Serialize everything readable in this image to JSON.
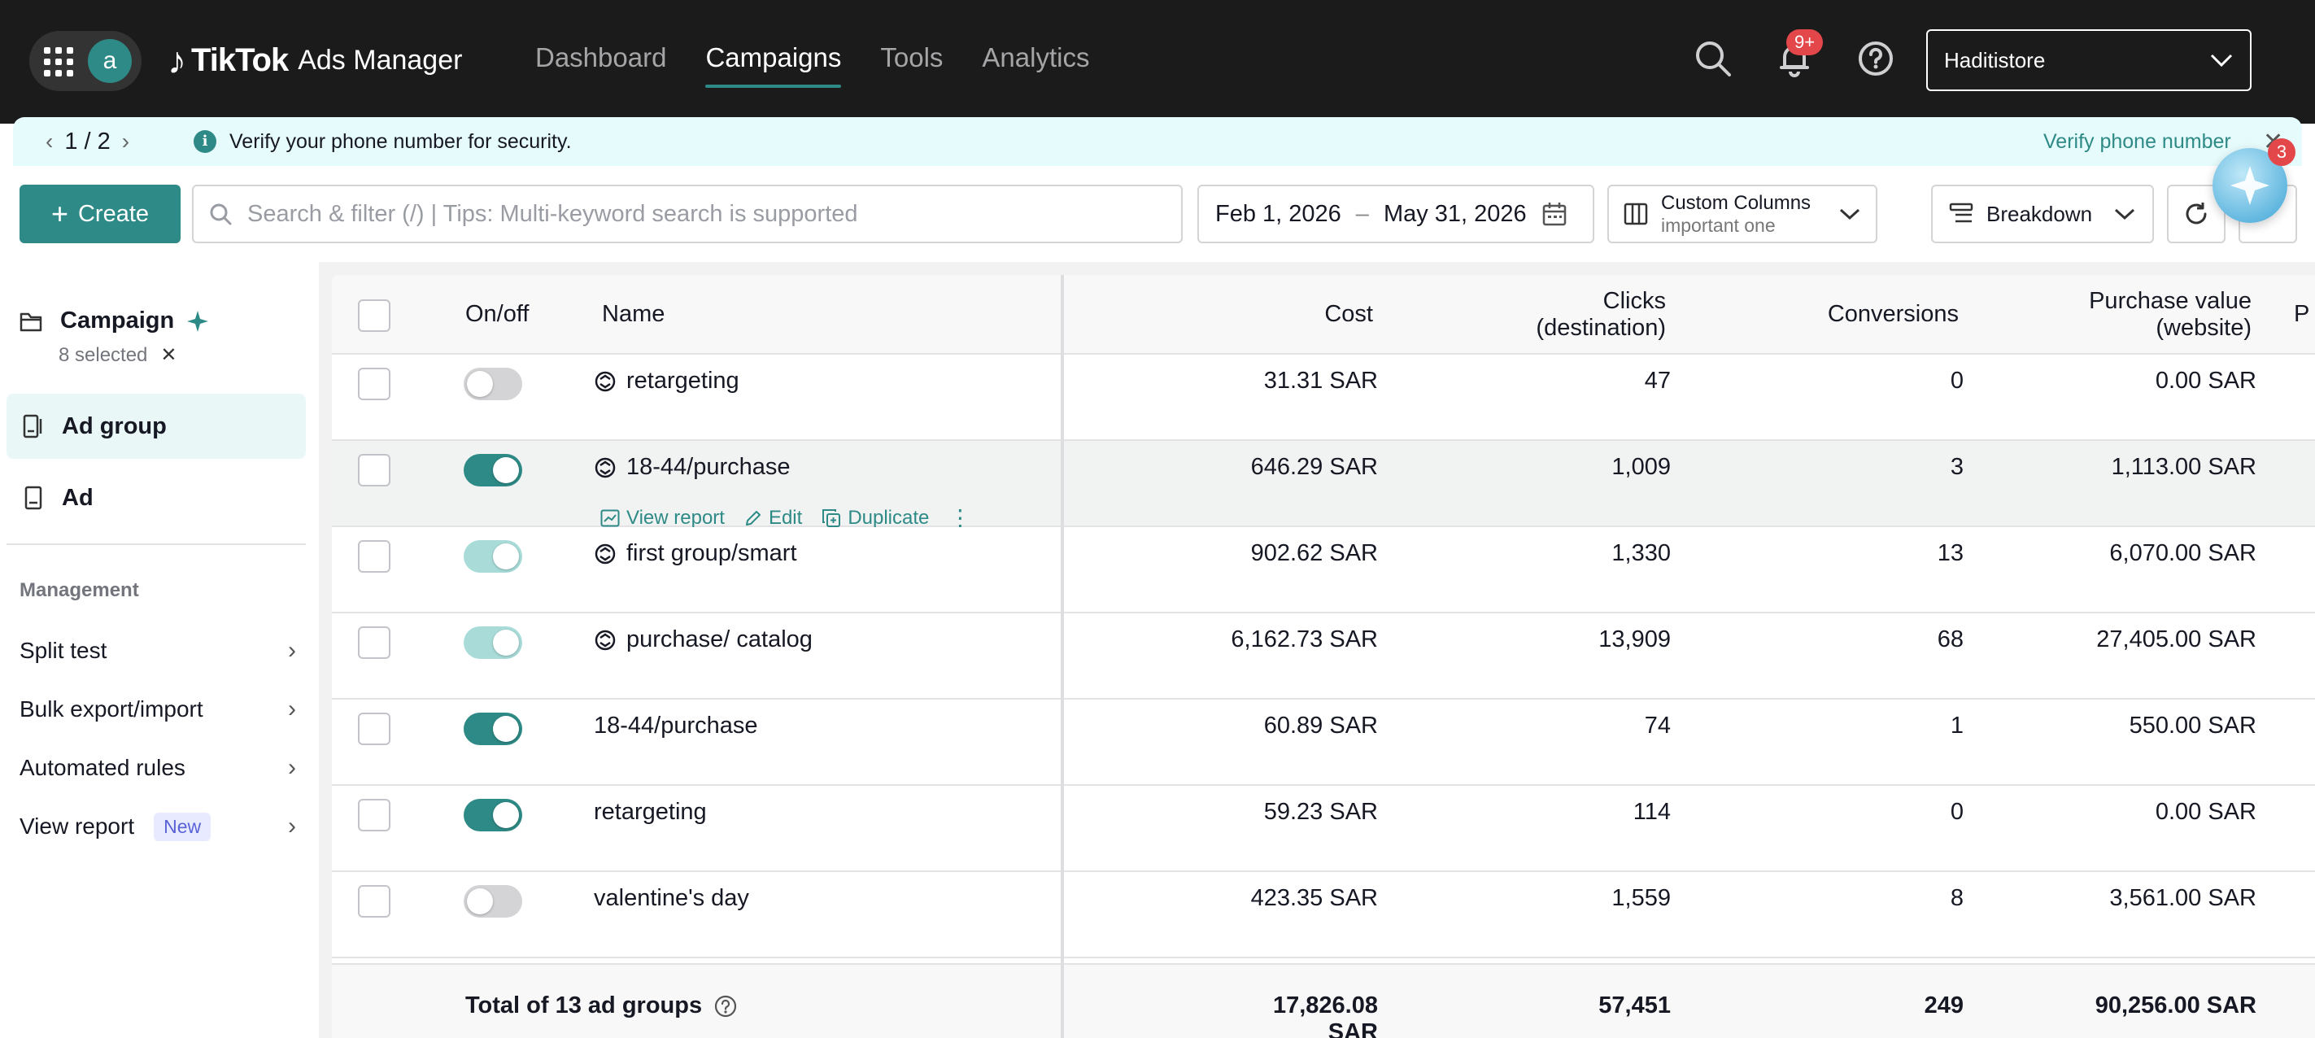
{
  "colors": {
    "accent": "#2e8a86",
    "topbar": "#1b1b1b",
    "notice_bg": "#e6fbfb",
    "badge_red": "#e4474a"
  },
  "header": {
    "avatar_letter": "a",
    "brand": "TikTok",
    "product": "Ads Manager",
    "nav": [
      "Dashboard",
      "Campaigns",
      "Tools",
      "Analytics"
    ],
    "notif_badge": "9+",
    "account": "Haditistore"
  },
  "notice": {
    "pager": "1 / 2",
    "message": "Verify your phone number for security.",
    "action": "Verify phone number"
  },
  "toolbar": {
    "create_label": "Create",
    "search_placeholder": "Search & filter (/) | Tips: Multi-keyword search is supported",
    "date_start": "Feb 1, 2026",
    "date_sep": "–",
    "date_end": "May 31, 2026",
    "columns_title": "Custom Columns",
    "columns_sub": "important one",
    "breakdown_label": "Breakdown",
    "assistant_badge": "3"
  },
  "sidebar": {
    "campaign_label": "Campaign",
    "selected_text": "8 selected",
    "adgroup_label": "Ad group",
    "ad_label": "Ad",
    "management_label": "Management",
    "items": [
      "Split test",
      "Bulk export/import",
      "Automated rules",
      "View report"
    ],
    "new_badge": "New"
  },
  "table": {
    "headers": {
      "onoff": "On/off",
      "name": "Name",
      "cost": "Cost",
      "clicks_1": "Clicks",
      "clicks_2": "(destination)",
      "conversions": "Conversions",
      "purchase_1": "Purchase value",
      "purchase_2": "(website)",
      "cut": "P"
    },
    "row_actions": {
      "view_report": "View report",
      "edit": "Edit",
      "duplicate": "Duplicate"
    },
    "rows": [
      {
        "name": "retargeting",
        "cost": "31.31 SAR",
        "clicks": "47",
        "conversions": "0",
        "purchase": "0.00 SAR"
      },
      {
        "name": "18-44/purchase",
        "cost": "646.29 SAR",
        "clicks": "1,009",
        "conversions": "3",
        "purchase": "1,113.00 SAR"
      },
      {
        "name": "first group/smart",
        "cost": "902.62 SAR",
        "clicks": "1,330",
        "conversions": "13",
        "purchase": "6,070.00 SAR"
      },
      {
        "name": "purchase/ catalog",
        "cost": "6,162.73 SAR",
        "clicks": "13,909",
        "conversions": "68",
        "purchase": "27,405.00 SAR"
      },
      {
        "name": "18-44/purchase",
        "cost": "60.89 SAR",
        "clicks": "74",
        "conversions": "1",
        "purchase": "550.00 SAR"
      },
      {
        "name": "retargeting",
        "cost": "59.23 SAR",
        "clicks": "114",
        "conversions": "0",
        "purchase": "0.00 SAR"
      },
      {
        "name": "valentine's day",
        "cost": "423.35 SAR",
        "clicks": "1,559",
        "conversions": "8",
        "purchase": "3,561.00 SAR"
      }
    ],
    "total": {
      "label": "Total of 13 ad groups",
      "cost": "17,826.08 SAR",
      "clicks": "57,451",
      "conversions": "249",
      "purchase": "90,256.00 SAR"
    }
  }
}
